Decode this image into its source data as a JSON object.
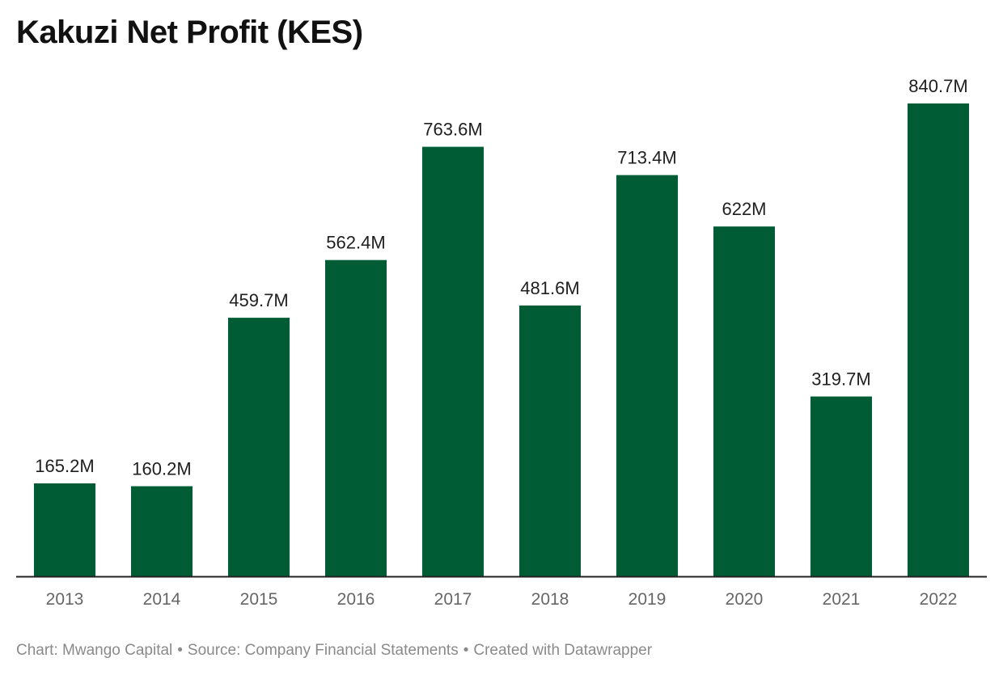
{
  "chart_data": {
    "type": "bar",
    "title": "Kakuzi Net Profit (KES)",
    "categories": [
      "2013",
      "2014",
      "2015",
      "2016",
      "2017",
      "2018",
      "2019",
      "2020",
      "2021",
      "2022"
    ],
    "values": [
      165.2,
      160.2,
      459.7,
      562.4,
      763.6,
      481.6,
      713.4,
      622,
      319.7,
      840.7
    ],
    "value_labels": [
      "165.2M",
      "160.2M",
      "459.7M",
      "562.4M",
      "763.6M",
      "481.6M",
      "713.4M",
      "622M",
      "319.7M",
      "840.7M"
    ],
    "xlabel": "",
    "ylabel": "",
    "ylim": [
      0,
      840.7
    ],
    "grid": false,
    "colors": {
      "bar": "#005c35",
      "axis": "#222222",
      "label": "#1f1f1f",
      "tick": "#666666"
    }
  },
  "footer": {
    "chart_by": "Chart: Mwango Capital",
    "source": "Source: Company Financial Statements",
    "created_with": "Created with Datawrapper",
    "separator": "•"
  }
}
